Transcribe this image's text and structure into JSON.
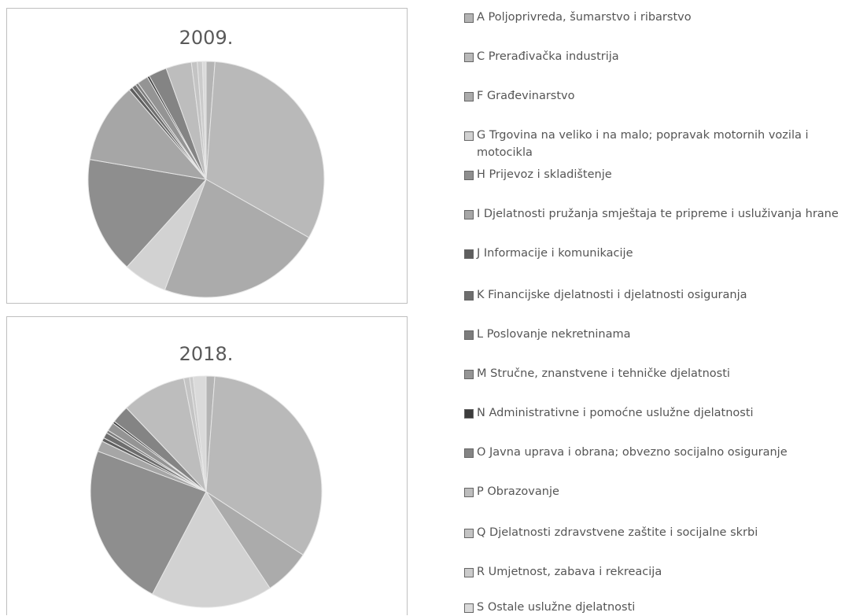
{
  "legend": {
    "categories": [
      "A Poljoprivreda, šumarstvo i ribarstvo",
      "C Prerađivačka industrija",
      "F Građevinarstvo",
      "G Trgovina na veliko i na malo; popravak motornih vozila i motocikla",
      "H Prijevoz i skladištenje",
      "I Djelatnosti pružanja smještaja te pripreme i usluživanja hrane",
      "J Informacije i komunikacije",
      "K Financijske djelatnosti i djelatnosti osiguranja",
      "L Poslovanje nekretninama",
      "M Stručne, znanstvene i tehničke djelatnosti",
      "N Administrativne i pomoćne uslužne djelatnosti",
      "O Javna uprava i obrana; obvezno socijalno osiguranje",
      "P Obrazovanje",
      "Q Djelatnosti zdravstvene zaštite i socijalne skrbi",
      "R Umjetnost, zabava i rekreacija",
      "S Ostale uslužne djelatnosti"
    ],
    "colors": [
      "#b4b4b4",
      "#b9b9b9",
      "#ababab",
      "#d2d2d2",
      "#8e8e8e",
      "#a6a6a6",
      "#5e5e5e",
      "#6e6e6e",
      "#7c7c7c",
      "#949494",
      "#3c3c3c",
      "#848484",
      "#bdbdbd",
      "#c4c4c4",
      "#cbcbcb",
      "#dadada"
    ]
  },
  "chart_data": [
    {
      "type": "pie",
      "title": "2009.",
      "values": [
        1.2,
        32,
        22.5,
        6,
        16,
        11,
        0.5,
        0.6,
        0.4,
        1.5,
        0.3,
        2.5,
        3.5,
        0.8,
        0.7,
        0.5
      ]
    },
    {
      "type": "pie",
      "title": "2018.",
      "values": [
        1.2,
        33,
        6.5,
        17,
        23,
        1.5,
        0.5,
        0.8,
        0.4,
        1.2,
        0.3,
        2.5,
        9,
        0.8,
        0.5,
        1.8
      ]
    }
  ]
}
